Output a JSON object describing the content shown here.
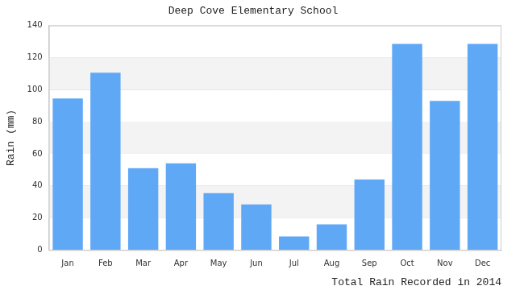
{
  "chart_data": {
    "type": "bar",
    "title": "Deep Cove Elementary School",
    "x_label": "Total Rain Recorded in 2014",
    "y_label": "Rain (mm)",
    "categories": [
      "Jan",
      "Feb",
      "Mar",
      "Apr",
      "May",
      "Jun",
      "Jul",
      "Aug",
      "Sep",
      "Oct",
      "Nov",
      "Dec"
    ],
    "values": [
      94.5,
      110.5,
      51,
      54,
      35.5,
      28.5,
      8.5,
      16,
      44,
      128.5,
      93,
      128.5
    ],
    "color": "#5fa8f6",
    "ylim": [
      0,
      140
    ],
    "yticks": [
      0,
      20,
      40,
      60,
      80,
      100,
      120,
      140
    ],
    "grid": true
  }
}
